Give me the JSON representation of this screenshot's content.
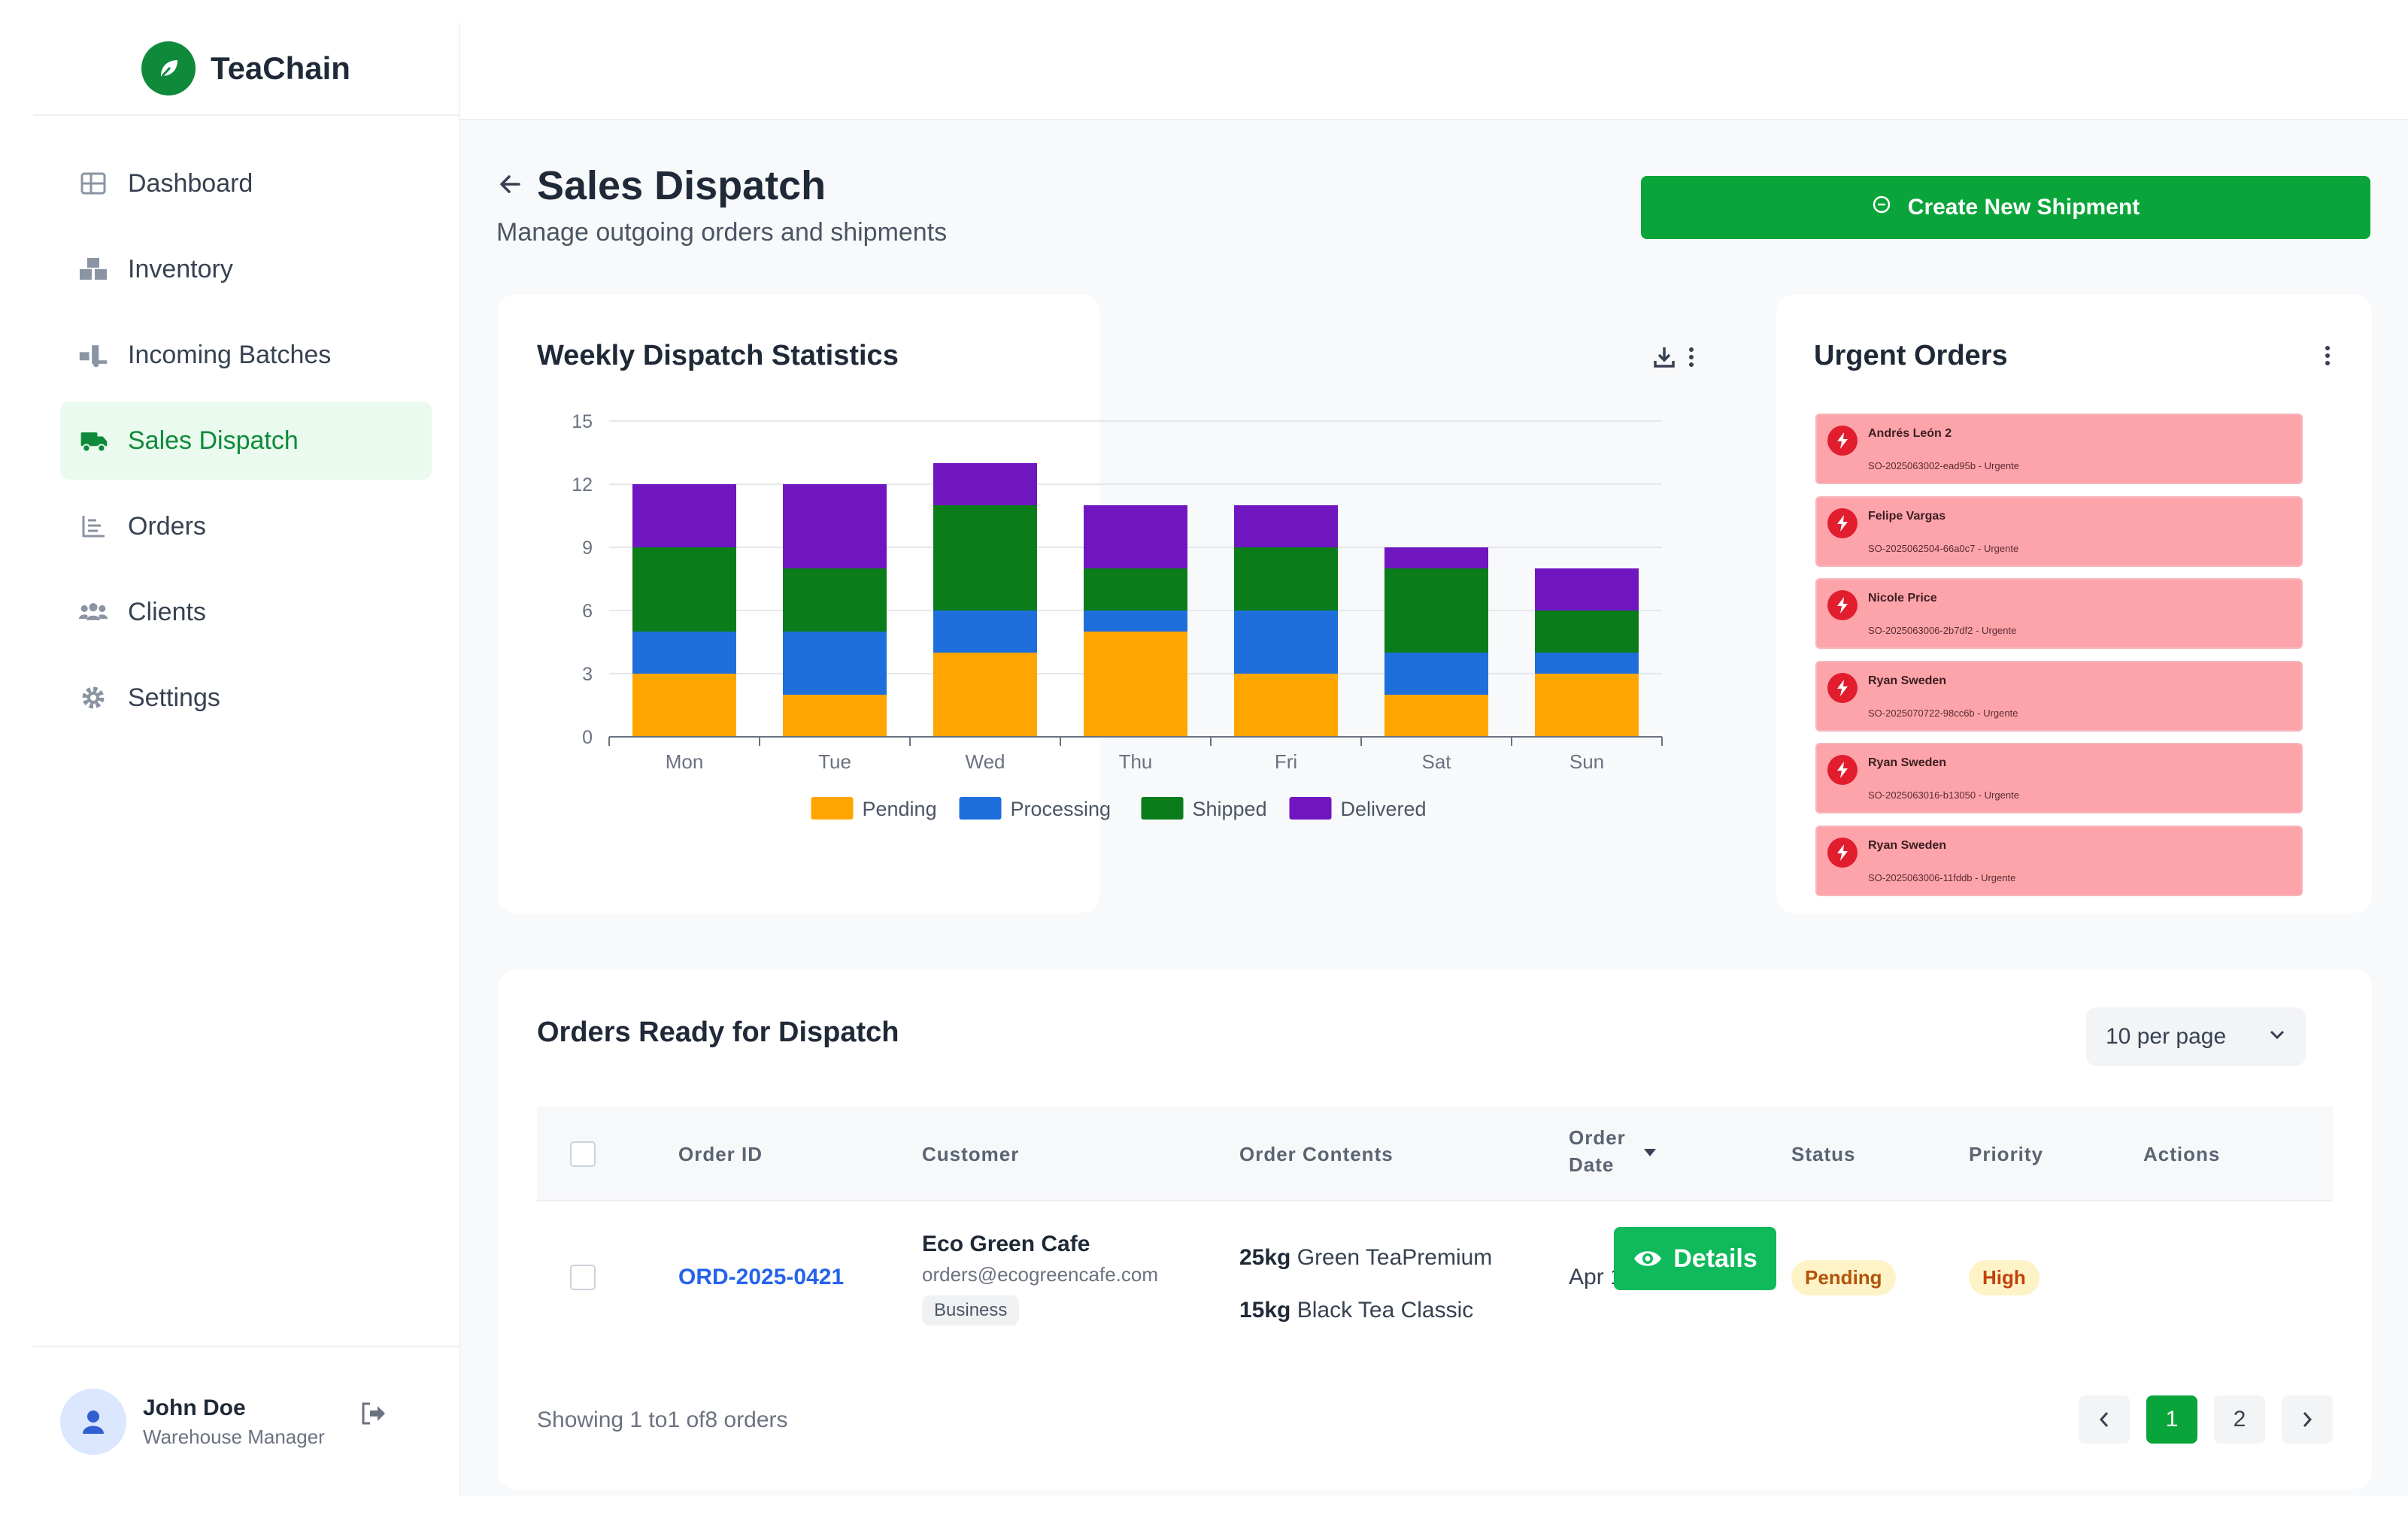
{
  "brand": {
    "name": "TeaChain"
  },
  "sidebar": {
    "items": [
      {
        "label": "Dashboard",
        "icon": "dashboard-icon",
        "active": false
      },
      {
        "label": "Inventory",
        "icon": "inventory-icon",
        "active": false
      },
      {
        "label": "Incoming Batches",
        "icon": "truck-loading-icon",
        "active": false
      },
      {
        "label": "Sales Dispatch",
        "icon": "truck-fast-icon",
        "active": true
      },
      {
        "label": "Orders",
        "icon": "list-icon",
        "active": false
      },
      {
        "label": "Clients",
        "icon": "users-icon",
        "active": false
      },
      {
        "label": "Settings",
        "icon": "gear-icon",
        "active": false
      }
    ]
  },
  "user": {
    "name": "John Doe",
    "role": "Warehouse Manager"
  },
  "page": {
    "title": "Sales Dispatch",
    "subtitle": "Manage outgoing orders and shipments",
    "create_button": "Create New Shipment"
  },
  "colors": {
    "accent": "#0aa53a",
    "pending": "#FFA500",
    "processing": "#1E6FDC",
    "shipped": "#0A7D1A",
    "delivered": "#7016C0",
    "urgent_bg": "#fda4ab"
  },
  "chart_data": {
    "type": "bar",
    "stacked": true,
    "title": "Weekly Dispatch Statistics",
    "categories": [
      "Mon",
      "Tue",
      "Wed",
      "Thu",
      "Fri",
      "Sat",
      "Sun"
    ],
    "series": [
      {
        "name": "Pending",
        "values": [
          3,
          2,
          4,
          5,
          3,
          2,
          3
        ]
      },
      {
        "name": "Processing",
        "values": [
          2,
          3,
          2,
          1,
          3,
          2,
          1
        ]
      },
      {
        "name": "Shipped",
        "values": [
          4,
          3,
          5,
          2,
          3,
          4,
          2
        ]
      },
      {
        "name": "Delivered",
        "values": [
          3,
          4,
          2,
          3,
          2,
          1,
          2
        ]
      }
    ],
    "ylim": [
      0,
      15
    ],
    "yticks": [
      0,
      3,
      6,
      9,
      12,
      15
    ],
    "grid": true,
    "legend_position": "bottom"
  },
  "urgent": {
    "title": "Urgent Orders",
    "items": [
      {
        "name": "Andrés León 2",
        "ref": "SO-2025063002-ead95b - Urgente"
      },
      {
        "name": "Felipe Vargas",
        "ref": "SO-2025062504-66a0c7 - Urgente"
      },
      {
        "name": "Nicole Price",
        "ref": "SO-2025063006-2b7df2 - Urgente"
      },
      {
        "name": "Ryan Sweden",
        "ref": "SO-2025070722-98cc6b - Urgente"
      },
      {
        "name": "Ryan Sweden",
        "ref": "SO-2025063016-b13050 - Urgente"
      },
      {
        "name": "Ryan Sweden",
        "ref": "SO-2025063006-11fddb - Urgente"
      }
    ]
  },
  "table": {
    "title": "Orders Ready for Dispatch",
    "per_page": "10 per page",
    "headers": {
      "order_id": "Order ID",
      "customer": "Customer",
      "contents": "Order Contents",
      "order_date_1": "Order",
      "order_date_2": "Date",
      "status": "Status",
      "priority": "Priority",
      "actions": "Actions"
    },
    "rows": [
      {
        "order_id": "ORD-2025-0421",
        "customer_name": "Eco Green Cafe",
        "customer_email": "orders@ecogreencafe.com",
        "customer_type": "Business",
        "contents": [
          {
            "qty": "25kg",
            "item": "Green TeaPremium"
          },
          {
            "qty": "15kg",
            "item": "Black Tea Classic"
          }
        ],
        "date": "Apr 12, 2025",
        "status": "Pending",
        "priority": "High",
        "action": "Details"
      }
    ],
    "showing": "Showing 1 to1 of8 orders",
    "pages": [
      "1",
      "2"
    ]
  }
}
